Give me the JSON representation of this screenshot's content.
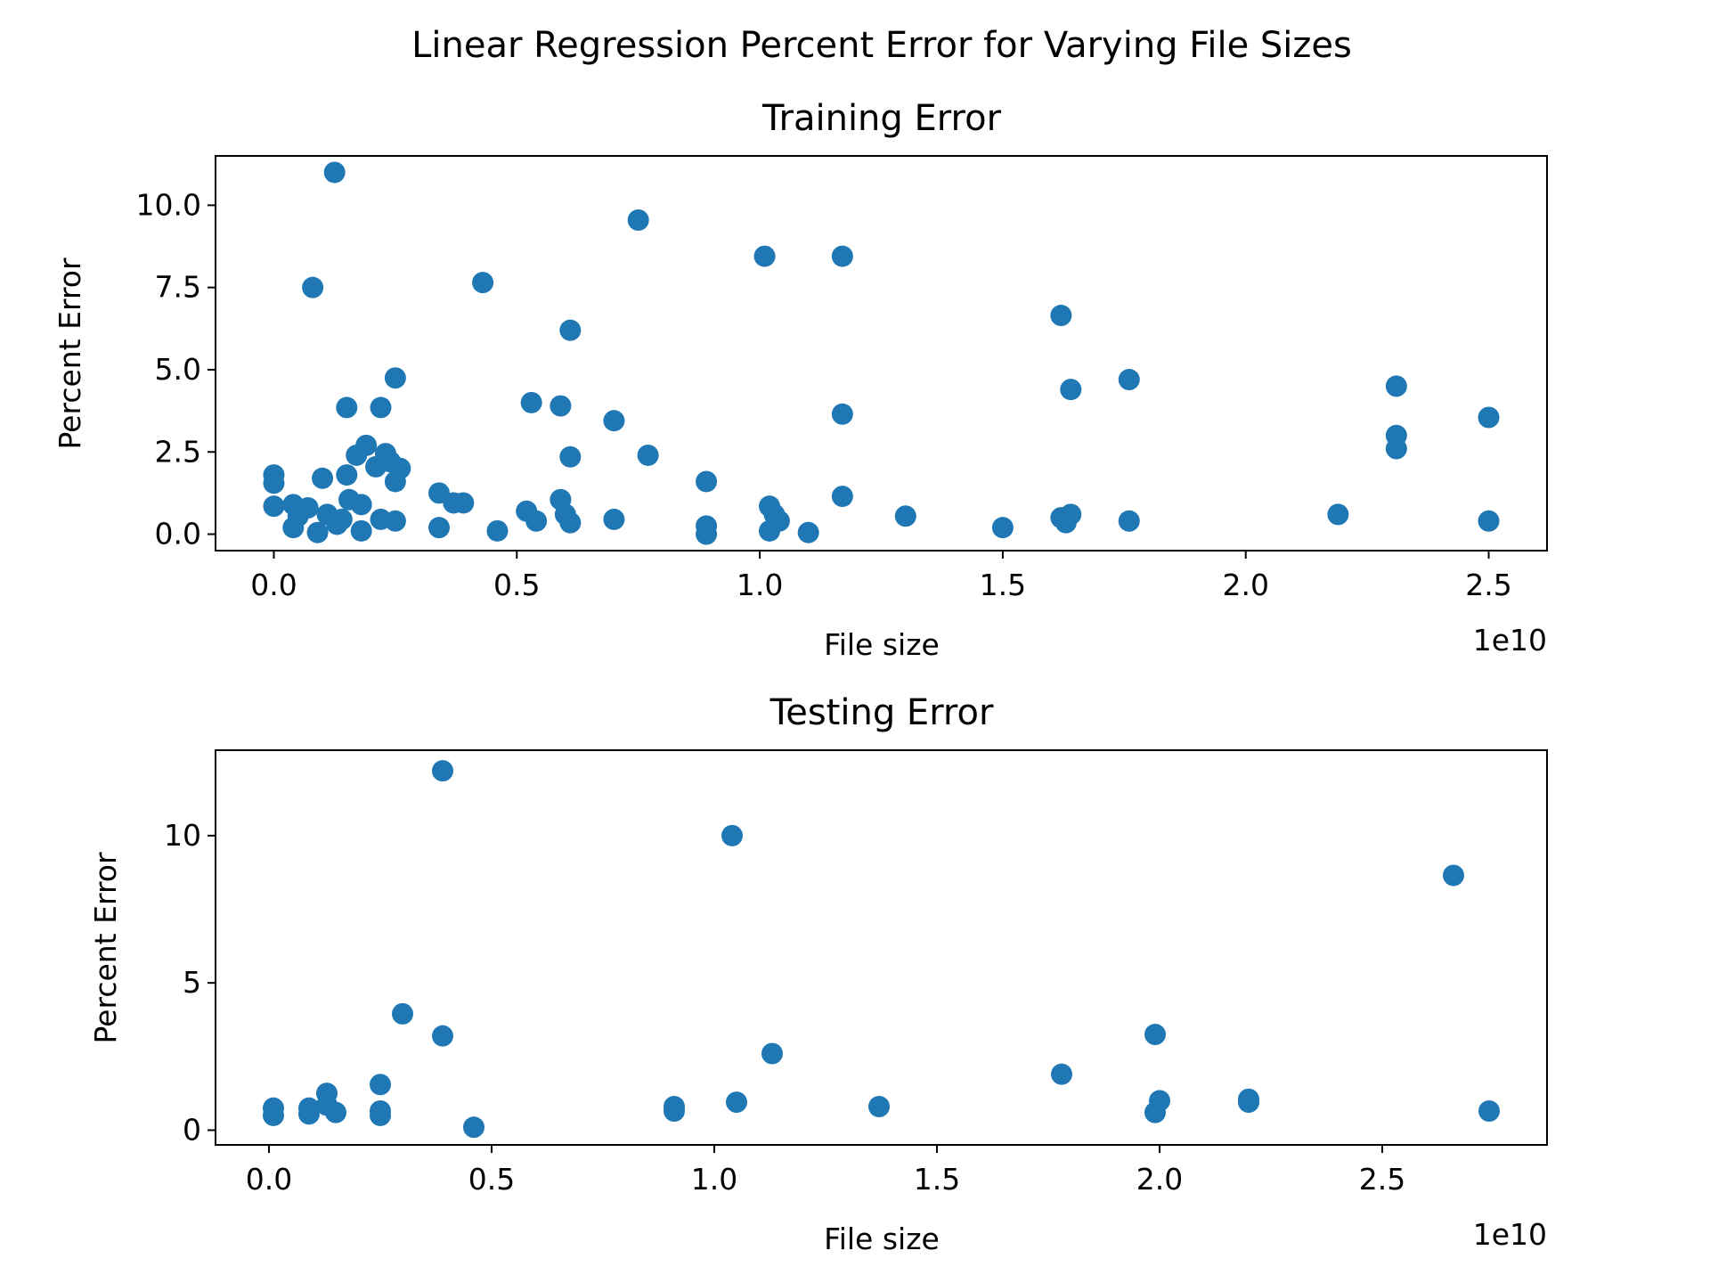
{
  "figure": {
    "suptitle": "Linear Regression Percent Error for Varying File Sizes",
    "marker_color": "#1f77b4"
  },
  "chart_data": [
    {
      "type": "scatter",
      "title": "Training Error",
      "xlabel": "File size",
      "ylabel": "Percent Error",
      "x_offset_text": "1e10",
      "xlim": [
        -0.12,
        2.62
      ],
      "ylim": [
        -0.5,
        11.5
      ],
      "xticks": [
        0.0,
        0.5,
        1.0,
        1.5,
        2.0,
        2.5
      ],
      "xtick_labels": [
        "0.0",
        "0.5",
        "1.0",
        "1.5",
        "2.0",
        "2.5"
      ],
      "yticks": [
        0.0,
        2.5,
        5.0,
        7.5,
        10.0
      ],
      "ytick_labels": [
        "0.0",
        "2.5",
        "5.0",
        "7.5",
        "10.0"
      ],
      "x_unit_multiplier": 10000000000,
      "points": [
        [
          0.125,
          11.0
        ],
        [
          0.08,
          7.5
        ],
        [
          0.0,
          1.8
        ],
        [
          0.0,
          1.55
        ],
        [
          0.0,
          0.85
        ],
        [
          0.04,
          0.9
        ],
        [
          0.05,
          0.55
        ],
        [
          0.04,
          0.2
        ],
        [
          0.07,
          0.8
        ],
        [
          0.09,
          0.05
        ],
        [
          0.1,
          1.7
        ],
        [
          0.11,
          0.6
        ],
        [
          0.13,
          0.3
        ],
        [
          0.14,
          0.45
        ],
        [
          0.15,
          1.8
        ],
        [
          0.15,
          3.85
        ],
        [
          0.155,
          1.05
        ],
        [
          0.17,
          2.4
        ],
        [
          0.18,
          0.9
        ],
        [
          0.18,
          0.1
        ],
        [
          0.19,
          2.7
        ],
        [
          0.21,
          2.05
        ],
        [
          0.22,
          3.85
        ],
        [
          0.22,
          0.45
        ],
        [
          0.23,
          2.45
        ],
        [
          0.24,
          2.2
        ],
        [
          0.25,
          4.75
        ],
        [
          0.25,
          1.6
        ],
        [
          0.25,
          0.4
        ],
        [
          0.26,
          2.0
        ],
        [
          0.34,
          1.25
        ],
        [
          0.34,
          0.2
        ],
        [
          0.37,
          0.95
        ],
        [
          0.39,
          0.95
        ],
        [
          0.43,
          7.65
        ],
        [
          0.46,
          0.1
        ],
        [
          0.52,
          0.7
        ],
        [
          0.53,
          4.0
        ],
        [
          0.54,
          0.4
        ],
        [
          0.59,
          3.9
        ],
        [
          0.59,
          1.05
        ],
        [
          0.6,
          0.6
        ],
        [
          0.61,
          6.2
        ],
        [
          0.61,
          2.35
        ],
        [
          0.61,
          0.35
        ],
        [
          0.7,
          3.45
        ],
        [
          0.7,
          0.45
        ],
        [
          0.75,
          9.55
        ],
        [
          0.77,
          2.4
        ],
        [
          0.89,
          1.6
        ],
        [
          0.89,
          0.25
        ],
        [
          0.89,
          0.0
        ],
        [
          1.01,
          8.45
        ],
        [
          1.02,
          0.85
        ],
        [
          1.02,
          0.1
        ],
        [
          1.03,
          0.6
        ],
        [
          1.04,
          0.4
        ],
        [
          1.1,
          0.05
        ],
        [
          1.17,
          8.45
        ],
        [
          1.17,
          3.65
        ],
        [
          1.17,
          1.15
        ],
        [
          1.3,
          0.55
        ],
        [
          1.5,
          0.2
        ],
        [
          1.62,
          6.65
        ],
        [
          1.62,
          0.5
        ],
        [
          1.63,
          0.35
        ],
        [
          1.64,
          4.4
        ],
        [
          1.64,
          0.6
        ],
        [
          1.76,
          4.7
        ],
        [
          1.76,
          0.4
        ],
        [
          2.19,
          0.6
        ],
        [
          2.31,
          4.5
        ],
        [
          2.31,
          3.0
        ],
        [
          2.31,
          2.6
        ],
        [
          2.5,
          3.55
        ],
        [
          2.5,
          0.4
        ]
      ]
    },
    {
      "type": "scatter",
      "title": "Testing Error",
      "xlabel": "File size",
      "ylabel": "Percent Error",
      "x_offset_text": "1e10",
      "xlim": [
        -0.12,
        2.87
      ],
      "ylim": [
        -0.5,
        12.9
      ],
      "xticks": [
        0.0,
        0.5,
        1.0,
        1.5,
        2.0,
        2.5
      ],
      "xtick_labels": [
        "0.0",
        "0.5",
        "1.0",
        "1.5",
        "2.0",
        "2.5"
      ],
      "yticks": [
        0,
        5,
        10
      ],
      "ytick_labels": [
        "0",
        "5",
        "10"
      ],
      "x_unit_multiplier": 10000000000,
      "points": [
        [
          0.01,
          0.75
        ],
        [
          0.01,
          0.5
        ],
        [
          0.09,
          0.75
        ],
        [
          0.09,
          0.55
        ],
        [
          0.13,
          1.25
        ],
        [
          0.13,
          0.85
        ],
        [
          0.15,
          0.6
        ],
        [
          0.25,
          1.55
        ],
        [
          0.25,
          0.65
        ],
        [
          0.25,
          0.5
        ],
        [
          0.3,
          3.95
        ],
        [
          0.39,
          12.2
        ],
        [
          0.39,
          3.2
        ],
        [
          0.46,
          0.1
        ],
        [
          0.91,
          0.8
        ],
        [
          0.91,
          0.65
        ],
        [
          1.04,
          10.0
        ],
        [
          1.05,
          0.95
        ],
        [
          1.13,
          2.6
        ],
        [
          1.37,
          0.8
        ],
        [
          1.78,
          1.9
        ],
        [
          1.99,
          3.25
        ],
        [
          1.99,
          0.6
        ],
        [
          2.0,
          1.0
        ],
        [
          2.2,
          1.05
        ],
        [
          2.2,
          0.95
        ],
        [
          2.66,
          8.65
        ],
        [
          2.74,
          0.65
        ]
      ]
    }
  ]
}
